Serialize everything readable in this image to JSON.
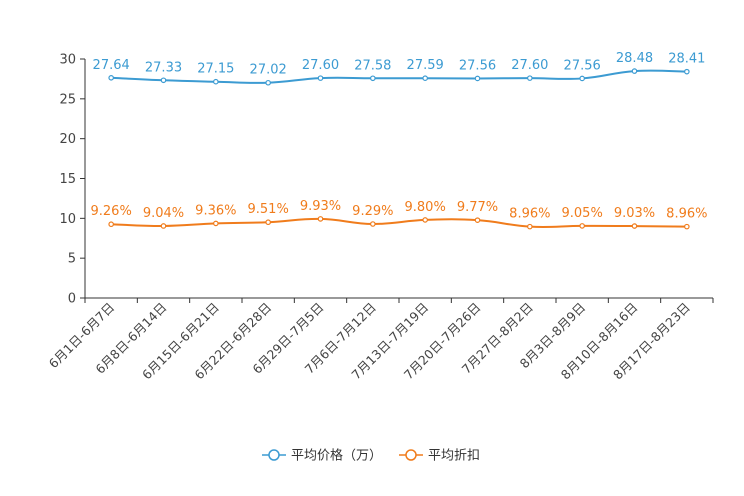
{
  "chart_data": {
    "type": "line",
    "title": "",
    "xlabel": "",
    "ylabel": "",
    "ylim": [
      0,
      30
    ],
    "yticks": [
      0,
      5,
      10,
      15,
      20,
      25,
      30
    ],
    "grid": false,
    "legend_position": "bottom-center",
    "categories": [
      "6月1日-6月7日",
      "6月8日-6月14日",
      "6月15日-6月21日",
      "6月22日-6月28日",
      "6月29日-7月5日",
      "7月6日-7月12日",
      "7月13日-7月19日",
      "7月20日-7月26日",
      "7月27日-8月2日",
      "8月3日-8月9日",
      "8月10日-8月16日",
      "8月17日-8月23日"
    ],
    "series": [
      {
        "name": "平均价格（万）",
        "color": "#3c9bd2",
        "values": [
          27.64,
          27.33,
          27.15,
          27.02,
          27.6,
          27.58,
          27.59,
          27.56,
          27.6,
          27.56,
          28.48,
          28.41
        ],
        "labels": [
          "27.64",
          "27.33",
          "27.15",
          "27.02",
          "27.60",
          "27.58",
          "27.59",
          "27.56",
          "27.60",
          "27.56",
          "28.48",
          "28.41"
        ]
      },
      {
        "name": "平均折扣",
        "color": "#f07c1c",
        "values": [
          9.26,
          9.04,
          9.36,
          9.51,
          9.93,
          9.29,
          9.8,
          9.77,
          8.96,
          9.05,
          9.03,
          8.96
        ],
        "labels": [
          "9.26%",
          "9.04%",
          "9.36%",
          "9.51%",
          "9.93%",
          "9.29%",
          "9.80%",
          "9.77%",
          "8.96%",
          "9.05%",
          "9.03%",
          "8.96%"
        ]
      }
    ]
  }
}
